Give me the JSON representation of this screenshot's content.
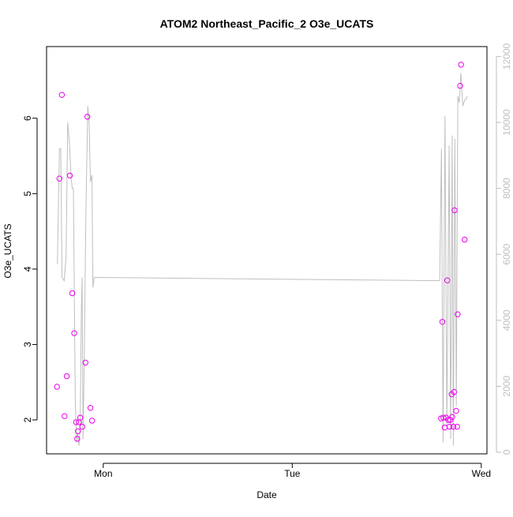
{
  "chart_data": {
    "type": "scatter",
    "title": "ATOM2 Northeast_Pacific_2 O3e_UCATS",
    "xlabel": "Date",
    "ylabel": "O3e_UCATS",
    "x_ticks": [
      {
        "label": "Mon",
        "value": 1.0
      },
      {
        "label": "Tue",
        "value": 2.0
      },
      {
        "label": "Wed",
        "value": 3.0
      }
    ],
    "xlim": [
      0.7,
      3.03
    ],
    "ylim": [
      1.55,
      6.95
    ],
    "y_ticks": [
      2,
      3,
      4,
      5,
      6
    ],
    "y2lim": [
      -50,
      12300
    ],
    "y2_ticks": [
      0,
      2000,
      4000,
      6000,
      8000,
      10000,
      12000
    ],
    "colors": {
      "points": "#ee00ee",
      "altitude_line": "#bfbfbf",
      "axis": "#000000",
      "right_axis": "#bfbfbf"
    },
    "series": [
      {
        "type": "scatter",
        "axis": "left",
        "x": [
          0.755,
          0.768,
          0.781,
          0.795,
          0.807,
          0.823,
          0.836,
          0.846,
          0.856,
          0.862,
          0.866,
          0.872,
          0.878,
          0.889,
          0.906,
          0.916,
          0.932,
          0.941,
          2.787,
          2.794,
          2.799,
          2.806,
          2.814,
          2.82,
          2.826,
          2.832,
          2.836,
          2.843,
          2.846,
          2.852,
          2.856,
          2.859,
          2.867,
          2.872,
          2.875,
          2.888,
          2.893,
          2.912
        ],
        "y": [
          2.44,
          5.2,
          6.31,
          2.05,
          2.58,
          5.24,
          3.68,
          3.15,
          1.97,
          1.75,
          1.85,
          1.97,
          2.03,
          1.91,
          2.76,
          6.02,
          2.16,
          1.99,
          2.02,
          3.3,
          2.03,
          1.9,
          2.03,
          3.85,
          2.0,
          1.91,
          2.0,
          2.34,
          2.04,
          1.91,
          2.37,
          4.78,
          2.12,
          1.91,
          3.4,
          6.43,
          6.71,
          4.39
        ]
      },
      {
        "type": "line",
        "axis": "right",
        "name_hint": "altitude",
        "x": [
          0.757,
          0.768,
          0.775,
          0.782,
          0.793,
          0.803,
          0.812,
          0.822,
          0.83,
          0.836,
          0.842,
          0.852,
          0.859,
          0.864,
          0.871,
          0.878,
          0.884,
          0.888,
          0.893,
          0.899,
          0.908,
          0.918,
          0.925,
          0.932,
          0.94,
          0.945,
          0.952,
          0.965,
          2.77,
          2.78,
          2.789,
          2.798,
          2.808,
          2.818,
          2.83,
          2.838,
          2.846,
          2.852,
          2.86,
          2.868,
          2.876,
          2.884,
          2.892,
          2.902,
          2.914,
          2.92,
          2.925
        ],
        "y": [
          5700,
          9200,
          9200,
          5300,
          5200,
          5900,
          10000,
          9300,
          8300,
          8000,
          8000,
          1500,
          300,
          600,
          200,
          800,
          4300,
          5300,
          400,
          2700,
          7200,
          10500,
          10000,
          8200,
          8400,
          5000,
          5300,
          5300,
          5200,
          5200,
          9200,
          300,
          10200,
          800,
          9300,
          400,
          9600,
          200,
          9500,
          1400,
          10800,
          10600,
          11500,
          10500,
          10700,
          10700,
          10800
        ]
      }
    ]
  }
}
